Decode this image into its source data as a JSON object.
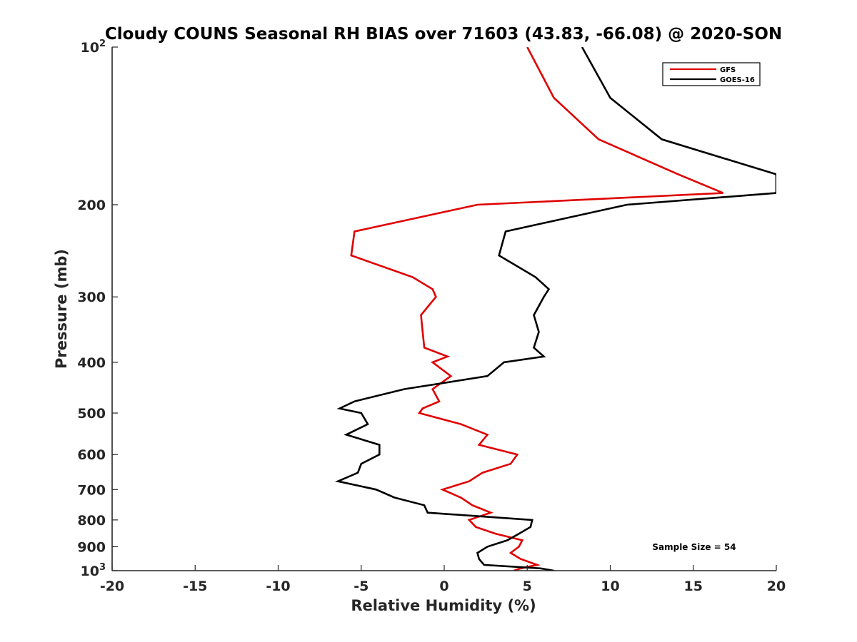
{
  "chart_data": {
    "type": "line",
    "title": "Cloudy COUNS Seasonal RH BIAS over 71603 (43.83, -66.08) @ 2020-SON",
    "xlabel": "Relative Humidity (%)",
    "ylabel": "Pressure (mb)",
    "xlim": [
      -20,
      20
    ],
    "ylim": [
      100,
      1000
    ],
    "yscale": "log",
    "y_reversed": true,
    "xticks": [
      -20,
      -15,
      -10,
      -5,
      0,
      5,
      10,
      15,
      20
    ],
    "xtick_labels": [
      "-20",
      "-15",
      "-10",
      "-5",
      "0",
      "5",
      "10",
      "15",
      "20"
    ],
    "yticks": [
      100,
      200,
      300,
      400,
      500,
      600,
      700,
      800,
      900,
      1000
    ],
    "ytick_labels": [
      {
        "base": "10",
        "sup": "2"
      },
      {
        "base": "200",
        "sup": ""
      },
      {
        "base": "300",
        "sup": ""
      },
      {
        "base": "400",
        "sup": ""
      },
      {
        "base": "500",
        "sup": ""
      },
      {
        "base": "600",
        "sup": ""
      },
      {
        "base": "700",
        "sup": ""
      },
      {
        "base": "800",
        "sup": ""
      },
      {
        "base": "900",
        "sup": ""
      },
      {
        "base": "10",
        "sup": "3"
      }
    ],
    "legend": {
      "position": "top-right",
      "entries": [
        "GFS",
        "GOES-16"
      ]
    },
    "annotation": "Sample Size = 54",
    "series": [
      {
        "name": "GFS",
        "color": "#e00000",
        "points": [
          [
            5.0,
            100
          ],
          [
            6.6,
            125
          ],
          [
            9.3,
            150
          ],
          [
            14.1,
            175
          ],
          [
            16.8,
            190
          ],
          [
            2.0,
            200
          ],
          [
            -5.4,
            225
          ],
          [
            -5.6,
            250
          ],
          [
            -1.9,
            275
          ],
          [
            -0.7,
            290
          ],
          [
            -0.5,
            300
          ],
          [
            -1.4,
            325
          ],
          [
            -1.3,
            350
          ],
          [
            -1.2,
            375
          ],
          [
            0.2,
            390
          ],
          [
            -0.7,
            400
          ],
          [
            0.4,
            425
          ],
          [
            -0.7,
            450
          ],
          [
            -0.3,
            475
          ],
          [
            -1.3,
            490
          ],
          [
            -1.5,
            500
          ],
          [
            1.0,
            525
          ],
          [
            2.6,
            550
          ],
          [
            2.1,
            575
          ],
          [
            4.4,
            600
          ],
          [
            4.0,
            625
          ],
          [
            2.3,
            650
          ],
          [
            1.5,
            675
          ],
          [
            -0.1,
            700
          ],
          [
            1.0,
            725
          ],
          [
            1.7,
            750
          ],
          [
            2.8,
            775
          ],
          [
            1.5,
            800
          ],
          [
            1.9,
            825
          ],
          [
            3.1,
            850
          ],
          [
            4.7,
            875
          ],
          [
            4.5,
            900
          ],
          [
            4.0,
            925
          ],
          [
            4.6,
            950
          ],
          [
            5.6,
            975
          ],
          [
            4.6,
            990
          ],
          [
            4.2,
            1000
          ]
        ]
      },
      {
        "name": "GOES-16",
        "color": "#000000",
        "points": [
          [
            8.3,
            100
          ],
          [
            10.0,
            125
          ],
          [
            13.1,
            150
          ],
          [
            20.0,
            175
          ],
          [
            20.0,
            190
          ],
          [
            11.0,
            200
          ],
          [
            3.7,
            225
          ],
          [
            3.3,
            250
          ],
          [
            5.5,
            275
          ],
          [
            6.3,
            290
          ],
          [
            6.0,
            300
          ],
          [
            5.4,
            325
          ],
          [
            5.7,
            350
          ],
          [
            5.4,
            375
          ],
          [
            6.0,
            390
          ],
          [
            3.6,
            400
          ],
          [
            2.6,
            425
          ],
          [
            -2.4,
            450
          ],
          [
            -5.4,
            475
          ],
          [
            -6.3,
            490
          ],
          [
            -5.0,
            500
          ],
          [
            -4.6,
            525
          ],
          [
            -5.9,
            550
          ],
          [
            -3.9,
            575
          ],
          [
            -3.9,
            600
          ],
          [
            -5.0,
            625
          ],
          [
            -5.2,
            650
          ],
          [
            -6.4,
            675
          ],
          [
            -4.1,
            700
          ],
          [
            -3.0,
            725
          ],
          [
            -1.2,
            750
          ],
          [
            -1.0,
            775
          ],
          [
            5.3,
            800
          ],
          [
            5.2,
            825
          ],
          [
            4.5,
            850
          ],
          [
            3.8,
            875
          ],
          [
            2.6,
            900
          ],
          [
            2.0,
            925
          ],
          [
            2.1,
            950
          ],
          [
            2.4,
            975
          ],
          [
            5.8,
            990
          ],
          [
            6.6,
            1000
          ]
        ]
      }
    ]
  }
}
